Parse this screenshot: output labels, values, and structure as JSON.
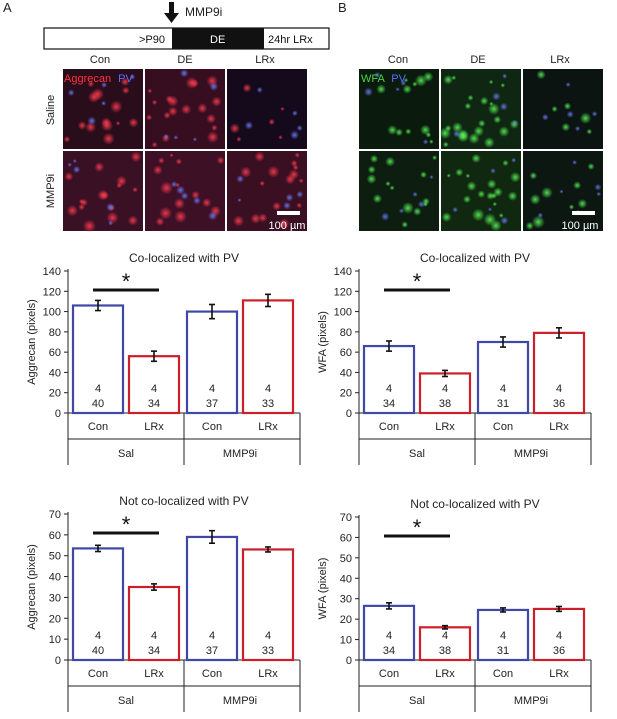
{
  "panels": {
    "a": "A",
    "b": "B"
  },
  "timeline": {
    "arrow_label": "MMP9i",
    "segments": [
      ">P90",
      "DE",
      "24hr LRx"
    ]
  },
  "micrographs": {
    "columns": [
      "Con",
      "DE",
      "LRx"
    ],
    "rows": [
      "Saline",
      "MMP9i"
    ],
    "left_stain": "Aggrecan",
    "right_stain": "WFA",
    "counter_stain": "PV",
    "scale_bar": "100 µm",
    "colors": {
      "aggrecan": "#e0203a",
      "wfa": "#3ec83e",
      "pv": "#4a5cff"
    }
  },
  "colors": {
    "con": "#3f48a6",
    "lrx": "#cc1f2a"
  },
  "significance_marker": "*",
  "chart_data": [
    {
      "id": "c1",
      "type": "bar",
      "title": "Co-localized with PV",
      "ylabel": "Aggrecan (pixels)",
      "ylim": [
        0,
        140
      ],
      "ytick_step": 20,
      "categories": [
        "Con",
        "LRx",
        "Con",
        "LRx"
      ],
      "groups": [
        "Sal",
        "MMP9i"
      ],
      "values": [
        106,
        56,
        100,
        111
      ],
      "errors": [
        5,
        5,
        7,
        6
      ],
      "n_top": [
        "4",
        "4",
        "4",
        "4"
      ],
      "n_bottom": [
        "40",
        "34",
        "37",
        "33"
      ],
      "significance": [
        0,
        1
      ]
    },
    {
      "id": "c2",
      "type": "bar",
      "title": "Co-localized with PV",
      "ylabel": "WFA (pixels)",
      "ylim": [
        0,
        140
      ],
      "ytick_step": 20,
      "categories": [
        "Con",
        "LRx",
        "Con",
        "LRx"
      ],
      "groups": [
        "Sal",
        "MMP9i"
      ],
      "values": [
        66,
        39,
        70,
        79
      ],
      "errors": [
        5,
        3,
        5,
        5
      ],
      "n_top": [
        "4",
        "4",
        "4",
        "4"
      ],
      "n_bottom": [
        "34",
        "38",
        "31",
        "36"
      ],
      "significance": [
        0,
        1
      ]
    },
    {
      "id": "c3",
      "type": "bar",
      "title": "Not co-localized with PV",
      "ylabel": "Aggrecan (pixels)",
      "ylim": [
        0,
        70
      ],
      "ytick_step": 10,
      "categories": [
        "Con",
        "LRx",
        "Con",
        "LRx"
      ],
      "groups": [
        "Sal",
        "MMP9i"
      ],
      "values": [
        53.5,
        35,
        59,
        53
      ],
      "errors": [
        1.5,
        1.5,
        3,
        1.2
      ],
      "n_top": [
        "4",
        "4",
        "4",
        "4"
      ],
      "n_bottom": [
        "40",
        "34",
        "37",
        "33"
      ],
      "significance": [
        0,
        1
      ]
    },
    {
      "id": "c4",
      "type": "bar",
      "title": "Not co-localized with PV",
      "ylabel": "WFA (pixels)",
      "ylim": [
        0,
        70
      ],
      "ytick_step": 10,
      "categories": [
        "Con",
        "LRx",
        "Con",
        "LRx"
      ],
      "groups": [
        "Sal",
        "MMP9i"
      ],
      "values": [
        26.5,
        16,
        24.5,
        25
      ],
      "errors": [
        1.5,
        0.8,
        1,
        1.2
      ],
      "n_top": [
        "4",
        "4",
        "4",
        "4"
      ],
      "n_bottom": [
        "34",
        "38",
        "31",
        "36"
      ],
      "significance": [
        0,
        1
      ]
    }
  ]
}
